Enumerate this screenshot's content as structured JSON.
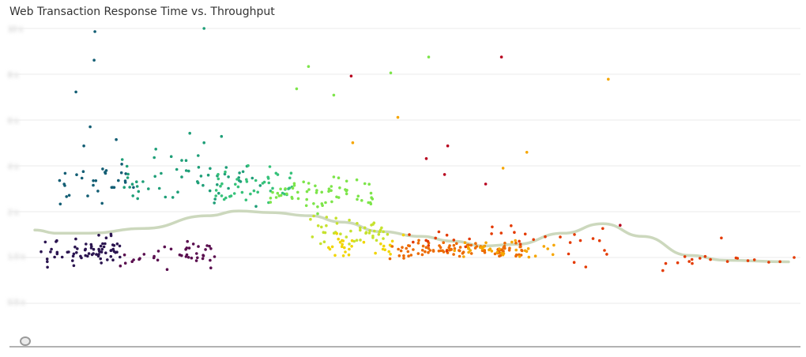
{
  "title": "Web Transaction Response Time vs. Throughput",
  "legend_toggle_icon": "eye-icon",
  "colors": {
    "grid": "#ebebeb",
    "axis": "#999999",
    "trend": "#ccd8bd",
    "gradient": [
      "#2b1550",
      "#5a0e4f",
      "#135e74",
      "#1f9f78",
      "#36c27a",
      "#7de54a",
      "#c6e22f",
      "#f1d500",
      "#f6a600",
      "#ec6a00",
      "#e43a00",
      "#b8001e"
    ]
  },
  "chart_data": {
    "type": "scatter",
    "title": "Web Transaction Response Time vs. Throughput",
    "xlabel": "",
    "ylabel": "",
    "x_range": [
      0,
      1000
    ],
    "y_range": [
      0,
      1
    ],
    "y_tick_labels": [
      "10 s",
      "8 s",
      "6 s",
      "4 s",
      "2 s",
      "1.0 s",
      "0.5 s",
      ""
    ],
    "grid": true,
    "legend": "bottom-left toggle",
    "note": "Axis tick labels are blurred/obscured in the original",
    "clusters": [
      {
        "x": [
          40,
          140
        ],
        "y": [
          0.24,
          0.36
        ],
        "color_index": 0,
        "count": 70
      },
      {
        "x": [
          140,
          260
        ],
        "y": [
          0.23,
          0.35
        ],
        "color_index": 1,
        "count": 40
      },
      {
        "x": [
          60,
          160
        ],
        "y": [
          0.42,
          0.6
        ],
        "color_index": 2,
        "count": 30
      },
      {
        "x": [
          140,
          320
        ],
        "y": [
          0.42,
          0.62
        ],
        "color_index": 3,
        "count": 55
      },
      {
        "x": [
          260,
          360
        ],
        "y": [
          0.44,
          0.58
        ],
        "color_index": 4,
        "count": 45
      },
      {
        "x": [
          330,
          460
        ],
        "y": [
          0.4,
          0.55
        ],
        "color_index": 5,
        "count": 60
      },
      {
        "x": [
          380,
          480
        ],
        "y": [
          0.3,
          0.42
        ],
        "color_index": 6,
        "count": 45
      },
      {
        "x": [
          400,
          500
        ],
        "y": [
          0.27,
          0.36
        ],
        "color_index": 7,
        "count": 30
      },
      {
        "x": [
          480,
          650
        ],
        "y": [
          0.26,
          0.34
        ],
        "color_index": 9,
        "count": 95
      },
      {
        "x": [
          560,
          690
        ],
        "y": [
          0.27,
          0.34
        ],
        "color_index": 8,
        "count": 35
      },
      {
        "x": [
          500,
          760
        ],
        "y": [
          0.28,
          0.4
        ],
        "color_index": 10,
        "count": 30
      },
      {
        "x": [
          700,
          1000
        ],
        "y": [
          0.22,
          0.33
        ],
        "color_index": 10,
        "count": 22
      }
    ],
    "outliers": [
      {
        "x": 108,
        "y": 0.99,
        "color_index": 2
      },
      {
        "x": 246,
        "y": 1.0,
        "color_index": 3
      },
      {
        "x": 107,
        "y": 0.9,
        "color_index": 2
      },
      {
        "x": 84,
        "y": 0.8,
        "color_index": 2
      },
      {
        "x": 102,
        "y": 0.69,
        "color_index": 2
      },
      {
        "x": 94,
        "y": 0.63,
        "color_index": 2
      },
      {
        "x": 135,
        "y": 0.65,
        "color_index": 2
      },
      {
        "x": 185,
        "y": 0.62,
        "color_index": 3
      },
      {
        "x": 228,
        "y": 0.67,
        "color_index": 3
      },
      {
        "x": 246,
        "y": 0.64,
        "color_index": 3
      },
      {
        "x": 268,
        "y": 0.66,
        "color_index": 3
      },
      {
        "x": 378,
        "y": 0.88,
        "color_index": 5
      },
      {
        "x": 363,
        "y": 0.81,
        "color_index": 5
      },
      {
        "x": 410,
        "y": 0.79,
        "color_index": 5
      },
      {
        "x": 482,
        "y": 0.86,
        "color_index": 5
      },
      {
        "x": 530,
        "y": 0.91,
        "color_index": 5
      },
      {
        "x": 432,
        "y": 0.85,
        "color_index": 11
      },
      {
        "x": 622,
        "y": 0.91,
        "color_index": 11
      },
      {
        "x": 491,
        "y": 0.72,
        "color_index": 8
      },
      {
        "x": 757,
        "y": 0.84,
        "color_index": 8
      },
      {
        "x": 434,
        "y": 0.64,
        "color_index": 8
      },
      {
        "x": 654,
        "y": 0.61,
        "color_index": 8
      },
      {
        "x": 624,
        "y": 0.56,
        "color_index": 8
      },
      {
        "x": 554,
        "y": 0.63,
        "color_index": 11
      },
      {
        "x": 527,
        "y": 0.59,
        "color_index": 11
      },
      {
        "x": 602,
        "y": 0.51,
        "color_index": 11
      },
      {
        "x": 550,
        "y": 0.54,
        "color_index": 11
      },
      {
        "x": 772,
        "y": 0.38,
        "color_index": 11
      },
      {
        "x": 900,
        "y": 0.34,
        "color_index": 10
      }
    ],
    "trend_line": {
      "x": [
        32,
        60,
        100,
        170,
        250,
        290,
        330,
        380,
        420,
        470,
        520,
        560,
        600,
        640,
        700,
        750,
        800,
        860,
        905,
        985
      ],
      "y": [
        0.365,
        0.355,
        0.355,
        0.37,
        0.41,
        0.425,
        0.42,
        0.41,
        0.39,
        0.36,
        0.345,
        0.33,
        0.315,
        0.32,
        0.355,
        0.385,
        0.345,
        0.285,
        0.27,
        0.265
      ]
    }
  }
}
